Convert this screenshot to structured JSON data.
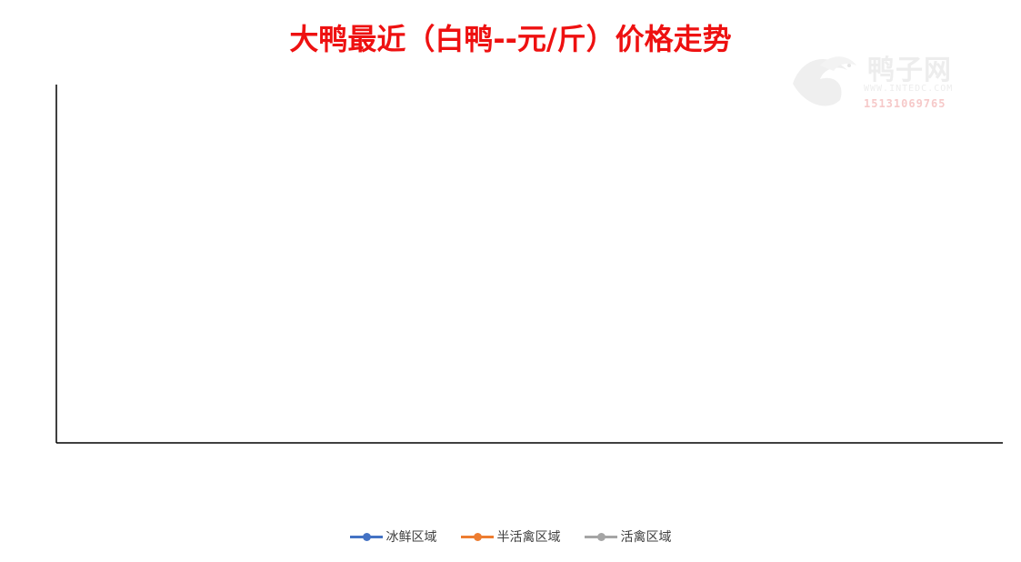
{
  "title": "大鸭最近（白鸭--元/斤）价格走势",
  "watermark": {
    "name": "鸭子网",
    "site": "WWW.INTEDC.COM",
    "phone": "15131069765"
  },
  "chart_data": {
    "type": "line",
    "title": "大鸭最近（白鸭--元/斤）价格走势",
    "x_dates": [],
    "x_tick_labels": [],
    "ylim": [
      2.0,
      5.5
    ],
    "y_ticks": [],
    "grid": true,
    "legend_position": "bottom",
    "series": [
      {
        "name": "冰鲜区域",
        "color": "#4472c4",
        "values": []
      },
      {
        "name": "半活禽区域",
        "color": "#ed7d31",
        "values": []
      },
      {
        "name": "活禽区域",
        "color": "#a5a5a5",
        "values": []
      }
    ]
  }
}
